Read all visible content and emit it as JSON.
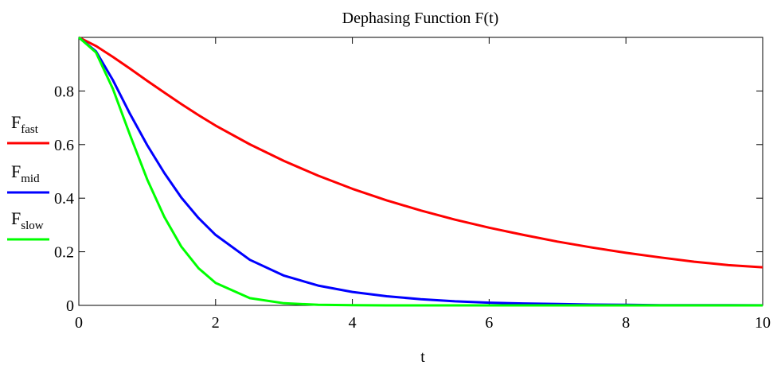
{
  "chart_data": {
    "type": "line",
    "title": "Dephasing Function F(t)",
    "xlabel": "t",
    "ylabel": "",
    "xlim": [
      0,
      10
    ],
    "ylim": [
      0,
      1
    ],
    "x_ticks": [
      "0",
      "2",
      "4",
      "6",
      "8",
      "10"
    ],
    "y_ticks": [
      "0",
      "0.2",
      "0.4",
      "0.6",
      "0.8"
    ],
    "x_tick_values": [
      0,
      2,
      4,
      6,
      8,
      10
    ],
    "y_tick_values": [
      0,
      0.2,
      0.4,
      0.6,
      0.8
    ],
    "grid": false,
    "legend_position": "left",
    "x": [
      0,
      0.25,
      0.5,
      0.75,
      1,
      1.25,
      1.5,
      1.75,
      2,
      2.5,
      3,
      3.5,
      4,
      4.5,
      5,
      5.5,
      6,
      6.5,
      7,
      7.5,
      8,
      8.5,
      9,
      9.5,
      10
    ],
    "series": [
      {
        "name": "F",
        "subscript": "fast",
        "color": "#ff0000",
        "values": [
          1.0,
          0.968,
          0.927,
          0.883,
          0.838,
          0.794,
          0.751,
          0.71,
          0.671,
          0.601,
          0.539,
          0.484,
          0.435,
          0.392,
          0.354,
          0.32,
          0.29,
          0.263,
          0.238,
          0.216,
          0.196,
          0.179,
          0.163,
          0.15,
          0.142
        ]
      },
      {
        "name": "F",
        "subscript": "mid",
        "color": "#0000ff",
        "values": [
          1.0,
          0.948,
          0.84,
          0.714,
          0.598,
          0.494,
          0.402,
          0.326,
          0.263,
          0.17,
          0.111,
          0.074,
          0.05,
          0.034,
          0.023,
          0.015,
          0.01,
          0.007,
          0.005,
          0.003,
          0.002,
          0.001,
          0.001,
          0.0005,
          0.0003
        ]
      },
      {
        "name": "F",
        "subscript": "slow",
        "color": "#00ff00",
        "values": [
          1.0,
          0.944,
          0.807,
          0.635,
          0.47,
          0.33,
          0.219,
          0.139,
          0.084,
          0.027,
          0.008,
          0.002,
          0.0005,
          0.0001,
          0,
          0,
          0,
          0,
          0,
          0,
          0,
          0,
          0,
          0,
          0
        ]
      }
    ]
  }
}
